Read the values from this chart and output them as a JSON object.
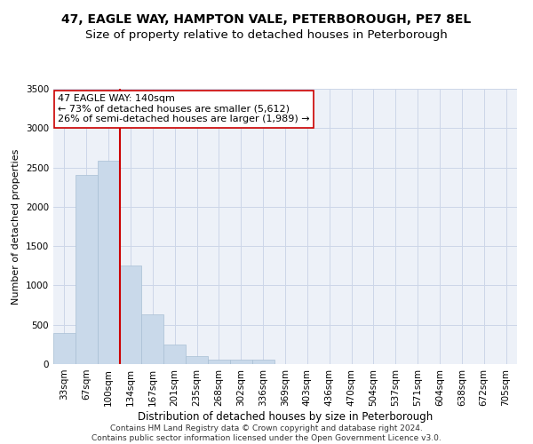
{
  "title1": "47, EAGLE WAY, HAMPTON VALE, PETERBOROUGH, PE7 8EL",
  "title2": "Size of property relative to detached houses in Peterborough",
  "xlabel": "Distribution of detached houses by size in Peterborough",
  "ylabel": "Number of detached properties",
  "categories": [
    "33sqm",
    "67sqm",
    "100sqm",
    "134sqm",
    "167sqm",
    "201sqm",
    "235sqm",
    "268sqm",
    "302sqm",
    "336sqm",
    "369sqm",
    "403sqm",
    "436sqm",
    "470sqm",
    "504sqm",
    "537sqm",
    "571sqm",
    "604sqm",
    "638sqm",
    "672sqm",
    "705sqm"
  ],
  "values": [
    390,
    2400,
    2590,
    1250,
    630,
    245,
    100,
    62,
    57,
    52,
    0,
    0,
    0,
    0,
    0,
    0,
    0,
    0,
    0,
    0,
    0
  ],
  "bar_color": "#c9d9ea",
  "bar_edge_color": "#a8bfd4",
  "vline_color": "#cc0000",
  "annotation_text": "47 EAGLE WAY: 140sqm\n← 73% of detached houses are smaller (5,612)\n26% of semi-detached houses are larger (1,989) →",
  "annotation_box_color": "white",
  "annotation_box_edge": "#cc0000",
  "ylim": [
    0,
    3500
  ],
  "yticks": [
    0,
    500,
    1000,
    1500,
    2000,
    2500,
    3000,
    3500
  ],
  "grid_color": "#ccd6e8",
  "background_color": "#edf1f8",
  "footer": "Contains HM Land Registry data © Crown copyright and database right 2024.\nContains public sector information licensed under the Open Government Licence v3.0.",
  "title1_fontsize": 10,
  "title2_fontsize": 9.5,
  "xlabel_fontsize": 8.5,
  "ylabel_fontsize": 8,
  "tick_fontsize": 7.5,
  "annot_fontsize": 8,
  "footer_fontsize": 6.5,
  "vline_x_index": 3
}
